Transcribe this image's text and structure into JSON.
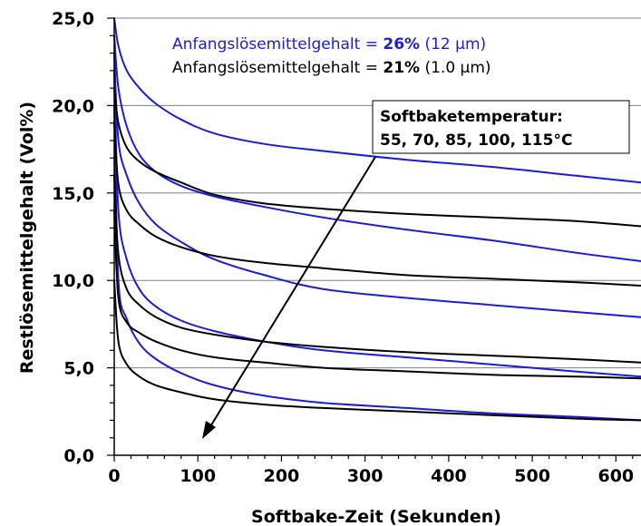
{
  "chart_data": {
    "type": "line",
    "title": "",
    "xlabel": "Softbake-Zeit (Sekunden)",
    "ylabel": "Restlösemittelgehalt (Vol%)",
    "xlim": [
      0,
      630
    ],
    "ylim": [
      0,
      25
    ],
    "x_ticks": [
      "0",
      "100",
      "200",
      "300",
      "400",
      "500",
      "600"
    ],
    "y_ticks": [
      "0,0",
      "5,0",
      "10,0",
      "15,0",
      "20,0",
      "25,0"
    ],
    "grid": "horizontal",
    "legend": {
      "position": "top-right",
      "entries": [
        {
          "prefix": "Anfangslösemittelgehalt = ",
          "bold": "26%",
          "suffix": " (12 µm)",
          "color": "#1c1cd6"
        },
        {
          "prefix": "Anfangslösemittelgehalt = ",
          "bold": "21%",
          "suffix": " (1.0 µm)",
          "color": "#000000"
        }
      ]
    },
    "annotation": {
      "line1": "Softbaketemperatur:",
      "line2": "55, 70, 85, 100, 115°C"
    },
    "series": [
      {
        "color": "#1c1cd6",
        "x": [
          0,
          5,
          15,
          30,
          50,
          80,
          120,
          180,
          250,
          350,
          450,
          550,
          630
        ],
        "y": [
          25,
          23.4,
          22.0,
          21.0,
          20.1,
          19.2,
          18.4,
          17.8,
          17.4,
          16.9,
          16.5,
          16.0,
          15.6
        ]
      },
      {
        "color": "#1c1cd6",
        "x": [
          0,
          5,
          15,
          30,
          50,
          80,
          120,
          180,
          250,
          350,
          450,
          550,
          630
        ],
        "y": [
          24,
          21.0,
          18.8,
          17.2,
          16.2,
          15.4,
          14.8,
          14.2,
          13.6,
          12.9,
          12.3,
          11.6,
          11.1
        ]
      },
      {
        "color": "#1c1cd6",
        "x": [
          0,
          5,
          15,
          30,
          50,
          80,
          120,
          180,
          250,
          350,
          450,
          550,
          630
        ],
        "y": [
          23,
          18.0,
          16.0,
          14.4,
          13.2,
          12.2,
          11.2,
          10.3,
          9.5,
          9.0,
          8.6,
          8.2,
          7.9
        ]
      },
      {
        "color": "#1c1cd6",
        "x": [
          0,
          5,
          15,
          30,
          50,
          80,
          120,
          180,
          250,
          350,
          450,
          550,
          630
        ],
        "y": [
          22,
          14.0,
          11.2,
          9.5,
          8.5,
          7.7,
          7.1,
          6.5,
          6.0,
          5.6,
          5.2,
          4.8,
          4.5
        ]
      },
      {
        "color": "#1c1cd6",
        "x": [
          0,
          5,
          15,
          30,
          50,
          80,
          120,
          180,
          250,
          350,
          450,
          550,
          630
        ],
        "y": [
          20,
          10.0,
          7.8,
          6.4,
          5.5,
          4.7,
          4.0,
          3.4,
          3.0,
          2.7,
          2.4,
          2.2,
          2.0
        ]
      },
      {
        "color": "#000000",
        "x": [
          0,
          5,
          15,
          30,
          50,
          80,
          120,
          180,
          250,
          350,
          450,
          550,
          630
        ],
        "y": [
          21,
          19.0,
          17.6,
          16.8,
          16.2,
          15.6,
          14.9,
          14.4,
          14.1,
          13.8,
          13.6,
          13.4,
          13.1
        ]
      },
      {
        "color": "#000000",
        "x": [
          0,
          5,
          15,
          30,
          50,
          80,
          120,
          180,
          250,
          350,
          450,
          550,
          630
        ],
        "y": [
          19,
          15.5,
          14.0,
          13.2,
          12.5,
          11.9,
          11.4,
          11.0,
          10.7,
          10.3,
          10.1,
          9.9,
          9.7
        ]
      },
      {
        "color": "#000000",
        "x": [
          0,
          5,
          15,
          30,
          50,
          80,
          120,
          180,
          250,
          350,
          450,
          550,
          630
        ],
        "y": [
          16,
          11.5,
          9.5,
          8.6,
          7.9,
          7.3,
          6.9,
          6.5,
          6.2,
          5.9,
          5.7,
          5.5,
          5.3
        ]
      },
      {
        "color": "#000000",
        "x": [
          0,
          5,
          15,
          30,
          50,
          80,
          120,
          180,
          250,
          350,
          450,
          550,
          630
        ],
        "y": [
          14,
          9.0,
          7.6,
          7.0,
          6.5,
          6.0,
          5.6,
          5.3,
          5.0,
          4.8,
          4.6,
          4.5,
          4.4
        ]
      },
      {
        "color": "#000000",
        "x": [
          0,
          5,
          15,
          30,
          50,
          80,
          120,
          180,
          250,
          350,
          450,
          550,
          630
        ],
        "y": [
          10,
          6.5,
          5.2,
          4.5,
          4.0,
          3.6,
          3.2,
          2.9,
          2.7,
          2.5,
          2.3,
          2.1,
          2.0
        ]
      }
    ]
  }
}
